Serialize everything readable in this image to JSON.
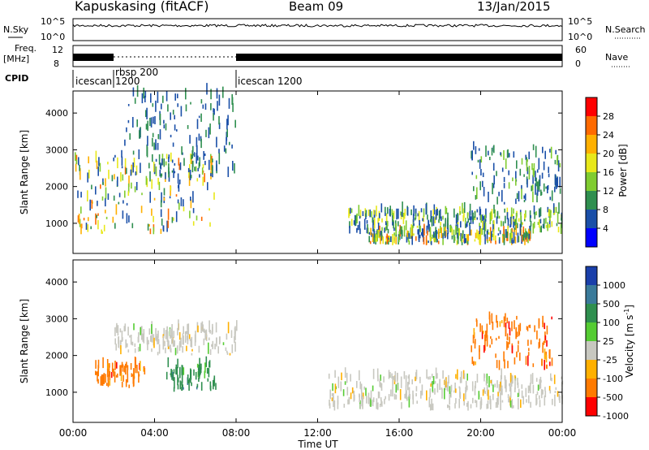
{
  "header": {
    "station": "Kapuskasing (fitACF)",
    "beam": "Beam 09",
    "date": "13/Jan/2015"
  },
  "strips": {
    "nsky_label": "N.Sky",
    "nsearch_label": "N.Search",
    "noise_ticks": [
      "10^5",
      "10^0"
    ],
    "freq_label_1": "Freq.",
    "freq_label_2": "[MHz]",
    "freq_ticks": [
      "12",
      "8"
    ],
    "nave_label": "Nave",
    "nave_ticks": [
      "60",
      "0"
    ],
    "cpid_label": "CPID",
    "cpid_segments": [
      {
        "name": "icescan",
        "start": "00:00",
        "end": "01:40"
      },
      {
        "name": "rbsp 200 1200",
        "start": "01:40",
        "end": "08:00"
      },
      {
        "name": "icescan 1200",
        "start": "08:00",
        "end": "24:00"
      }
    ]
  },
  "chart_data": [
    {
      "type": "heatmap",
      "name": "power",
      "ylabel": "Slant Range [km]",
      "yticks": [
        1000,
        2000,
        3000,
        4000
      ],
      "ylim": [
        180,
        4600
      ],
      "xlim": [
        "00:00",
        "24:00"
      ],
      "colorbar": {
        "label": "Power [dB]",
        "ticks": [
          "28",
          "24",
          "20",
          "16",
          "12",
          "8",
          "4"
        ],
        "colors": [
          "#ff0000",
          "#ff6a00",
          "#ffb000",
          "#e8e81a",
          "#80cc30",
          "#2f8f4f",
          "#1a4fa8",
          "#0000ff"
        ]
      },
      "features": [
        {
          "desc": "dense echoes",
          "start": "00:00",
          "end": "07:00",
          "range": [
            700,
            2800
          ],
          "peak_db": 28
        },
        {
          "desc": "upper band",
          "start": "02:30",
          "end": "08:00",
          "range": [
            2200,
            4500
          ],
          "peak_db": 12
        },
        {
          "desc": "near-range band",
          "start": "13:30",
          "end": "24:00",
          "range": [
            700,
            1300
          ],
          "peak_db": 20
        },
        {
          "desc": "strong low band",
          "start": "14:30",
          "end": "22:30",
          "range": [
            400,
            700
          ],
          "peak_db": 28
        },
        {
          "desc": "evening patch",
          "start": "19:30",
          "end": "24:00",
          "range": [
            1500,
            3000
          ],
          "peak_db": 16
        }
      ]
    },
    {
      "type": "heatmap",
      "name": "velocity",
      "ylabel": "Slant Range [km]",
      "yticks": [
        1000,
        2000,
        3000,
        4000
      ],
      "ylim": [
        180,
        4600
      ],
      "xlabel": "Time UT",
      "xticks": [
        "00:00",
        "04:00",
        "08:00",
        "12:00",
        "16:00",
        "20:00",
        "00:00"
      ],
      "colorbar": {
        "label": "Velocity [m s-1]",
        "ticks": [
          "1000",
          "500",
          "100",
          "25",
          "-25",
          "-100",
          "-500",
          "-1000"
        ],
        "colors": [
          "#1a3faa",
          "#3a7a9a",
          "#2f8f4f",
          "#55cc33",
          "#c8c8c0",
          "#ffb000",
          "#ff7a00",
          "#ff0000"
        ]
      },
      "features": [
        {
          "desc": "ground scatter band",
          "start": "02:00",
          "end": "08:00",
          "range": [
            2000,
            2700
          ],
          "velocity": 0
        },
        {
          "desc": "westward flow",
          "start": "01:00",
          "end": "03:30",
          "range": [
            1100,
            1700
          ],
          "velocity": -300
        },
        {
          "desc": "green patch",
          "start": "04:30",
          "end": "07:00",
          "range": [
            1000,
            1700
          ],
          "velocity": 100
        },
        {
          "desc": "late ground scatter",
          "start": "12:30",
          "end": "24:00",
          "range": [
            500,
            1400
          ],
          "velocity": 0
        },
        {
          "desc": "evening return",
          "start": "19:30",
          "end": "23:30",
          "range": [
            1600,
            3000
          ],
          "velocity": -300
        }
      ]
    }
  ]
}
